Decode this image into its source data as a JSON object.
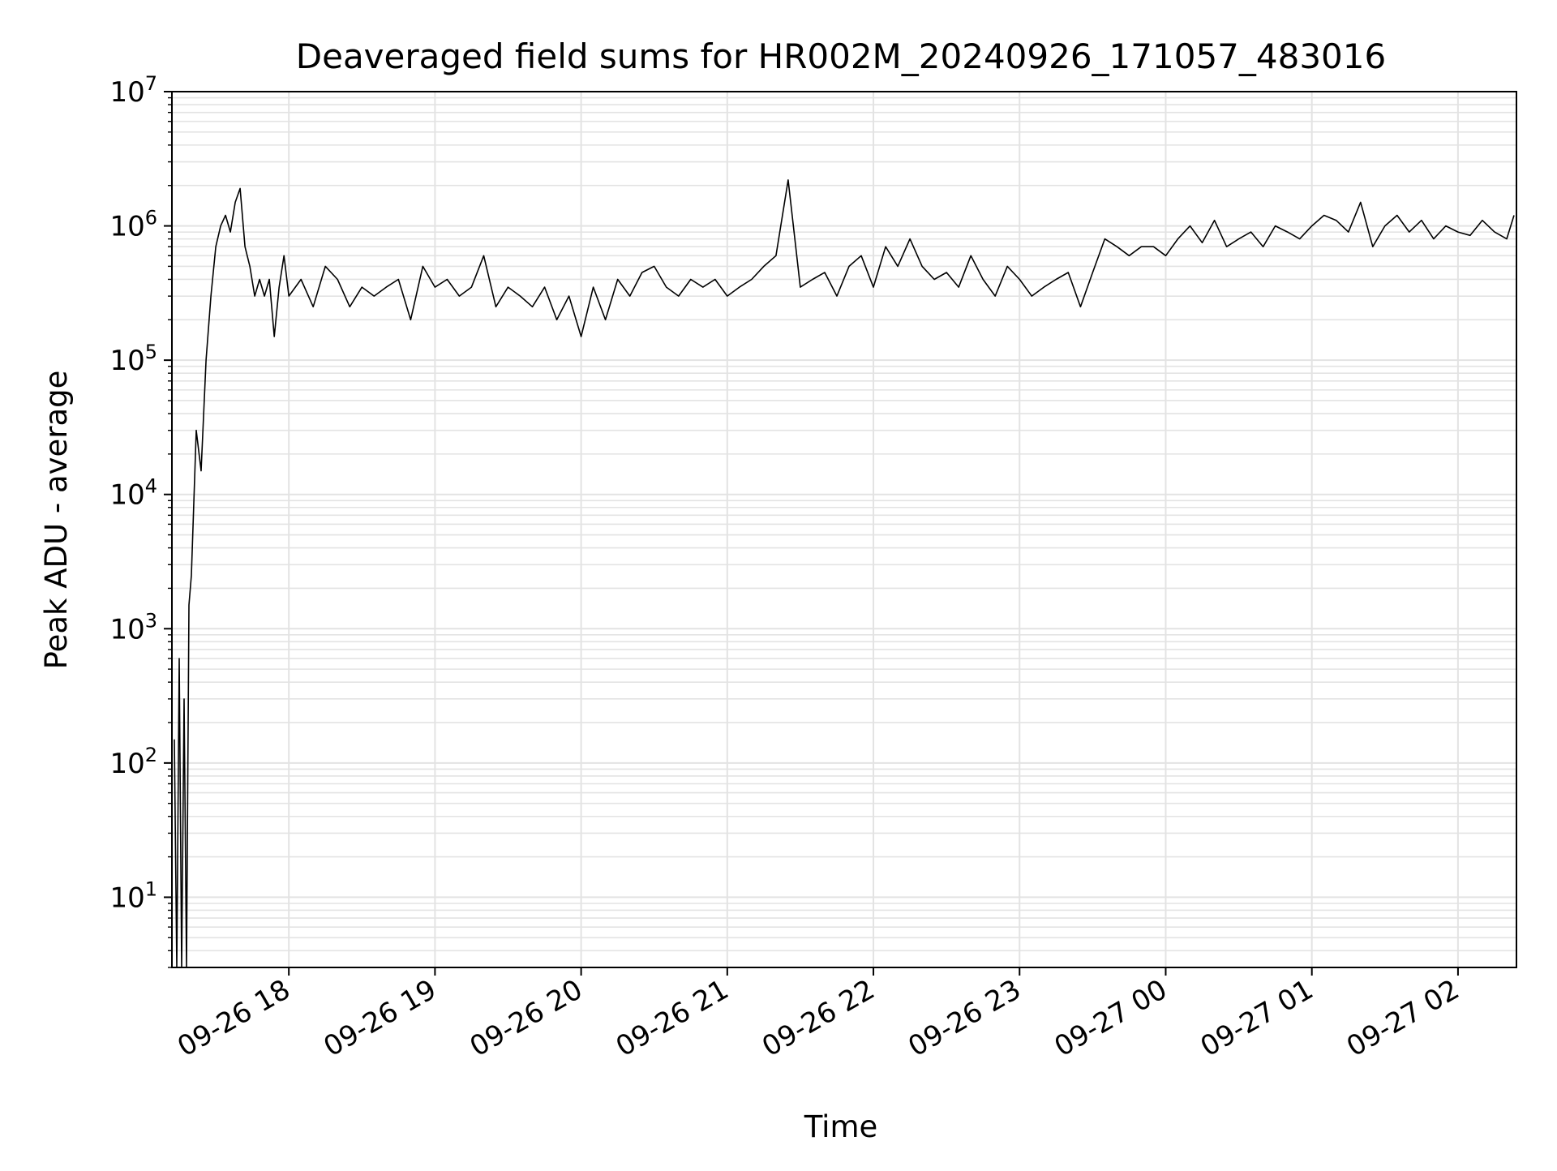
{
  "chart_data": {
    "type": "line",
    "title": "Deaveraged field sums for HR002M_20240926_171057_483016",
    "xlabel": "Time",
    "ylabel": "Peak ADU - average",
    "y_scale": "log",
    "ylim": [
      3,
      10000000
    ],
    "xlim": [
      "09-26 17:12",
      "09-27 02:24"
    ],
    "x_ticks": [
      "09-26 18",
      "09-26 19",
      "09-26 20",
      "09-26 21",
      "09-26 22",
      "09-26 23",
      "09-27 00",
      "09-27 01",
      "09-27 02"
    ],
    "y_ticks": [
      {
        "base": "10",
        "exp": "1",
        "value": 10
      },
      {
        "base": "10",
        "exp": "2",
        "value": 100
      },
      {
        "base": "10",
        "exp": "3",
        "value": 1000
      },
      {
        "base": "10",
        "exp": "4",
        "value": 10000
      },
      {
        "base": "10",
        "exp": "5",
        "value": 100000
      },
      {
        "base": "10",
        "exp": "6",
        "value": 1000000
      },
      {
        "base": "10",
        "exp": "7",
        "value": 10000000
      }
    ],
    "grid": true,
    "line_color": "#000000",
    "series": [
      {
        "x": [
          "09-26 17:13",
          "09-26 17:14",
          "09-26 17:15",
          "09-26 17:16",
          "09-26 17:17",
          "09-26 17:18",
          "09-26 17:19",
          "09-26 17:20",
          "09-26 17:22",
          "09-26 17:24",
          "09-26 17:26",
          "09-26 17:28",
          "09-26 17:30",
          "09-26 17:32",
          "09-26 17:34",
          "09-26 17:36",
          "09-26 17:38",
          "09-26 17:40",
          "09-26 17:42",
          "09-26 17:44",
          "09-26 17:46",
          "09-26 17:48",
          "09-26 17:50",
          "09-26 17:52",
          "09-26 17:54",
          "09-26 17:56",
          "09-26 17:58",
          "09-26 18:00",
          "09-26 18:05",
          "09-26 18:10",
          "09-26 18:15",
          "09-26 18:20",
          "09-26 18:25",
          "09-26 18:30",
          "09-26 18:35",
          "09-26 18:40",
          "09-26 18:45",
          "09-26 18:50",
          "09-26 18:55",
          "09-26 19:00",
          "09-26 19:05",
          "09-26 19:10",
          "09-26 19:15",
          "09-26 19:20",
          "09-26 19:25",
          "09-26 19:30",
          "09-26 19:35",
          "09-26 19:40",
          "09-26 19:45",
          "09-26 19:50",
          "09-26 19:55",
          "09-26 20:00",
          "09-26 20:05",
          "09-26 20:10",
          "09-26 20:15",
          "09-26 20:20",
          "09-26 20:25",
          "09-26 20:30",
          "09-26 20:35",
          "09-26 20:40",
          "09-26 20:45",
          "09-26 20:50",
          "09-26 20:55",
          "09-26 21:00",
          "09-26 21:05",
          "09-26 21:10",
          "09-26 21:15",
          "09-26 21:20",
          "09-26 21:25",
          "09-26 21:30",
          "09-26 21:35",
          "09-26 21:40",
          "09-26 21:45",
          "09-26 21:50",
          "09-26 21:55",
          "09-26 22:00",
          "09-26 22:05",
          "09-26 22:10",
          "09-26 22:15",
          "09-26 22:20",
          "09-26 22:25",
          "09-26 22:30",
          "09-26 22:35",
          "09-26 22:40",
          "09-26 22:45",
          "09-26 22:50",
          "09-26 22:55",
          "09-26 23:00",
          "09-26 23:05",
          "09-26 23:10",
          "09-26 23:15",
          "09-26 23:20",
          "09-26 23:25",
          "09-26 23:30",
          "09-26 23:35",
          "09-26 23:40",
          "09-26 23:45",
          "09-26 23:50",
          "09-26 23:55",
          "09-27 00:00",
          "09-27 00:05",
          "09-27 00:10",
          "09-27 00:15",
          "09-27 00:20",
          "09-27 00:25",
          "09-27 00:30",
          "09-27 00:35",
          "09-27 00:40",
          "09-27 00:45",
          "09-27 00:50",
          "09-27 00:55",
          "09-27 01:00",
          "09-27 01:05",
          "09-27 01:10",
          "09-27 01:15",
          "09-27 01:20",
          "09-27 01:25",
          "09-27 01:30",
          "09-27 01:35",
          "09-27 01:40",
          "09-27 01:45",
          "09-27 01:50",
          "09-27 01:55",
          "09-27 02:00",
          "09-27 02:05",
          "09-27 02:10",
          "09-27 02:15",
          "09-27 02:20",
          "09-27 02:23"
        ],
        "values": [
          150,
          3,
          600,
          3,
          300,
          3,
          1500,
          2500,
          30000,
          15000,
          100000,
          300000,
          700000,
          1000000,
          1200000,
          900000,
          1500000,
          1900000,
          700000,
          500000,
          300000,
          400000,
          300000,
          400000,
          150000,
          350000,
          600000,
          300000,
          400000,
          250000,
          500000,
          400000,
          250000,
          350000,
          300000,
          350000,
          400000,
          200000,
          500000,
          350000,
          400000,
          300000,
          350000,
          600000,
          250000,
          350000,
          300000,
          250000,
          350000,
          200000,
          300000,
          150000,
          350000,
          200000,
          400000,
          300000,
          450000,
          500000,
          350000,
          300000,
          400000,
          350000,
          400000,
          300000,
          350000,
          400000,
          500000,
          600000,
          2200000,
          350000,
          400000,
          450000,
          300000,
          500000,
          600000,
          350000,
          700000,
          500000,
          800000,
          500000,
          400000,
          450000,
          350000,
          600000,
          400000,
          300000,
          500000,
          400000,
          300000,
          350000,
          400000,
          450000,
          250000,
          450000,
          800000,
          700000,
          600000,
          700000,
          700000,
          600000,
          800000,
          1000000,
          750000,
          1100000,
          700000,
          800000,
          900000,
          700000,
          1000000,
          900000,
          800000,
          1000000,
          1200000,
          1100000,
          900000,
          1500000,
          700000,
          1000000,
          1200000,
          900000,
          1100000,
          800000,
          1000000,
          900000,
          850000,
          1100000,
          900000,
          800000,
          1200000
        ]
      }
    ]
  }
}
